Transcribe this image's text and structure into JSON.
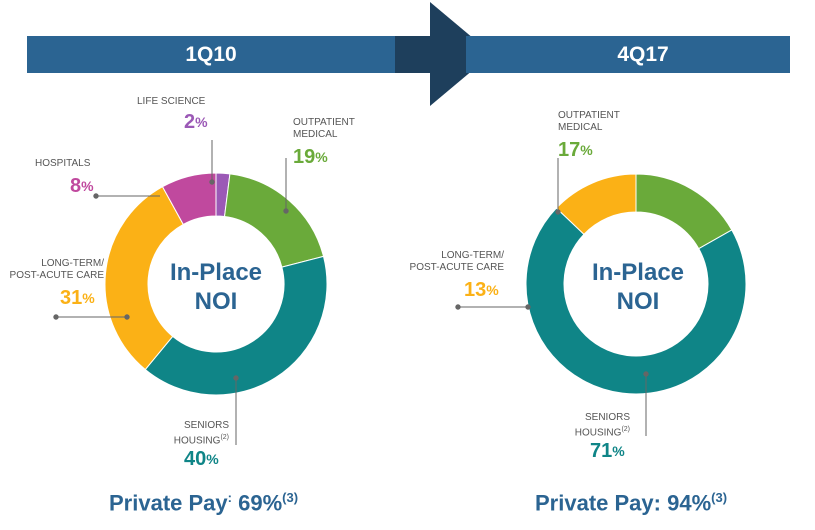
{
  "periods": [
    {
      "id": "left",
      "title": "1Q10",
      "center_line1": "In-Place",
      "center_line2": "NOI",
      "private_pay_label": "Private Pay",
      "private_pay_colon": ":",
      "private_pay_value": "69%",
      "private_pay_note": "(3)"
    },
    {
      "id": "right",
      "title": "4Q17",
      "center_line1": "In-Place",
      "center_line2": "NOI",
      "private_pay_label": "Private Pay",
      "private_pay_colon": ":",
      "private_pay_value": "94%",
      "private_pay_note": "(3)"
    }
  ],
  "labels": {
    "left": {
      "life_science": {
        "line1": "LIFE SCIENCE",
        "pct": "2",
        "sym": "%"
      },
      "outpatient": {
        "line1": "OUTPATIENT",
        "line2": "MEDICAL",
        "pct": "19",
        "sym": "%"
      },
      "hospitals": {
        "line1": "HOSPITALS",
        "pct": "8",
        "sym": "%"
      },
      "ltpac": {
        "line1": "LONG-TERM/",
        "line2": "POST-ACUTE CARE",
        "pct": "31",
        "sym": "%"
      },
      "seniors": {
        "line1": "SENIORS",
        "line2": "HOUSING",
        "note": "(2)",
        "pct": "40",
        "sym": "%"
      }
    },
    "right": {
      "outpatient": {
        "line1": "OUTPATIENT",
        "line2": "MEDICAL",
        "pct": "17",
        "sym": "%"
      },
      "ltpac": {
        "line1": "LONG-TERM/",
        "line2": "POST-ACUTE CARE",
        "pct": "13",
        "sym": "%"
      },
      "seniors": {
        "line1": "SENIORS",
        "line2": "HOUSING",
        "note": "(2)",
        "pct": "71",
        "sym": "%"
      }
    }
  },
  "colors": {
    "banner": "#2b6492",
    "arrow": "#1e3f5c",
    "life_science": "#9b59b6",
    "outpatient": "#6aaa3a",
    "hospitals": "#c0499e",
    "ltpac": "#fbb116",
    "seniors": "#0f8587"
  },
  "chart_data": [
    {
      "type": "pie",
      "title": "1Q10",
      "center_label": "In-Place NOI",
      "categories": [
        "LIFE SCIENCE",
        "OUTPATIENT MEDICAL",
        "SENIORS HOUSING",
        "LONG-TERM/POST-ACUTE CARE",
        "HOSPITALS"
      ],
      "values": [
        2,
        19,
        40,
        31,
        8
      ],
      "colors": [
        "#9b59b6",
        "#6aaa3a",
        "#0f8587",
        "#fbb116",
        "#c0499e"
      ]
    },
    {
      "type": "pie",
      "title": "4Q17",
      "center_label": "In-Place NOI",
      "categories": [
        "OUTPATIENT MEDICAL",
        "SENIORS HOUSING",
        "LONG-TERM/POST-ACUTE CARE"
      ],
      "values": [
        17,
        71,
        13
      ],
      "colors": [
        "#6aaa3a",
        "#0f8587",
        "#fbb116"
      ]
    }
  ]
}
